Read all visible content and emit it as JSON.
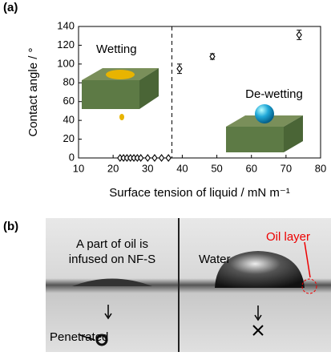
{
  "chart_data": {
    "type": "scatter",
    "panel_label": "(a)",
    "xlabel": "Surface tension of liquid / mN m⁻¹",
    "ylabel": "Contact angle / °",
    "x": [
      22,
      23,
      24,
      25,
      26,
      27,
      28,
      30,
      32,
      34,
      36,
      39.2,
      48.7,
      73.8
    ],
    "values": [
      0,
      0,
      0,
      0,
      0,
      0,
      0,
      0,
      0,
      0,
      0,
      95,
      108,
      131
    ],
    "errors": [
      0,
      0,
      0,
      0,
      0,
      0,
      0,
      0,
      0,
      0,
      0,
      5,
      3,
      5
    ],
    "color": "#000000",
    "marker": "diamond",
    "xlim": [
      10,
      80
    ],
    "xticks": [
      10,
      20,
      30,
      40,
      50,
      60,
      70,
      80
    ],
    "ylim": [
      0,
      140
    ],
    "yticks": [
      0,
      20,
      40,
      60,
      80,
      100,
      120,
      140
    ],
    "vline": 37,
    "annotations": [
      "Wetting",
      "De-wetting"
    ]
  },
  "panel_b": {
    "label": "(b)",
    "left_caption": [
      "A part of oil is",
      "infused on NF-S"
    ],
    "penetrated": "Penetrated",
    "water": "Water",
    "oil_layer": "Oil layer"
  }
}
